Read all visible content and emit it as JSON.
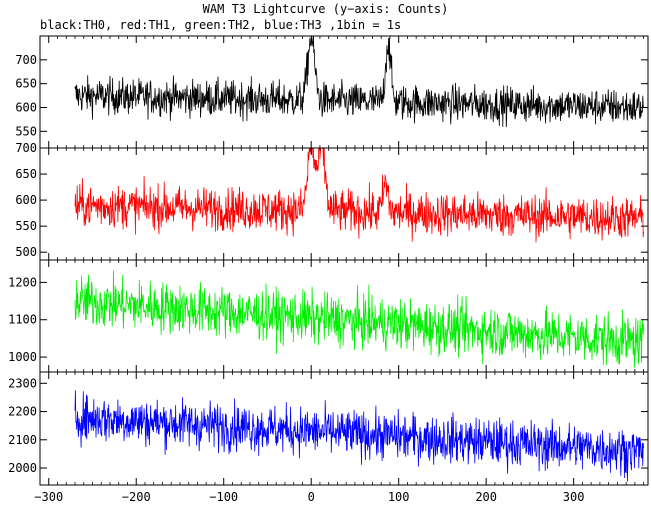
{
  "header": {
    "title": "WAM T3 Lightcurve (y−axis: Counts)",
    "subtitle": "black:TH0, red:TH1, green:TH2, blue:TH3 ,1bin = 1s"
  },
  "chart_data": {
    "type": "line",
    "x_range": [
      -310,
      385
    ],
    "x_ticks": [
      -300,
      -200,
      -100,
      0,
      100,
      200,
      300
    ],
    "bin_seconds": 1,
    "panels": [
      {
        "name": "TH0",
        "color": "#000000",
        "ylim": [
          515,
          750
        ],
        "yticks": [
          550,
          600,
          650,
          700
        ],
        "data_x_range": [
          -270,
          380
        ],
        "trend": [
          [
            -270,
            625
          ],
          [
            380,
            600
          ]
        ],
        "noise_amplitude": 25,
        "peaks": [
          {
            "x": 0,
            "value": 745,
            "width": 4
          },
          {
            "x": 88,
            "value": 735,
            "width": 3
          }
        ]
      },
      {
        "name": "TH1",
        "color": "#ff0000",
        "ylim": [
          485,
          700
        ],
        "yticks": [
          500,
          550,
          600,
          650,
          700
        ],
        "data_x_range": [
          -270,
          380
        ],
        "trend": [
          [
            -270,
            590
          ],
          [
            380,
            565
          ]
        ],
        "noise_amplitude": 27,
        "peaks": [
          {
            "x": 0,
            "value": 705,
            "width": 4
          },
          {
            "x": 12,
            "value": 700,
            "width": 4
          },
          {
            "x": 85,
            "value": 630,
            "width": 3
          }
        ]
      },
      {
        "name": "TH2",
        "color": "#00ee00",
        "ylim": [
          960,
          1260
        ],
        "yticks": [
          1000,
          1100,
          1200
        ],
        "data_x_range": [
          -270,
          380
        ],
        "trend": [
          [
            -270,
            1150
          ],
          [
            380,
            1040
          ]
        ],
        "noise_amplitude": 45,
        "peaks": []
      },
      {
        "name": "TH3",
        "color": "#0000ff",
        "ylim": [
          1940,
          2340
        ],
        "yticks": [
          2000,
          2100,
          2200,
          2300
        ],
        "data_x_range": [
          -270,
          380
        ],
        "trend": [
          [
            -270,
            2180
          ],
          [
            380,
            2060
          ]
        ],
        "noise_amplitude": 55,
        "peaks": []
      }
    ]
  }
}
